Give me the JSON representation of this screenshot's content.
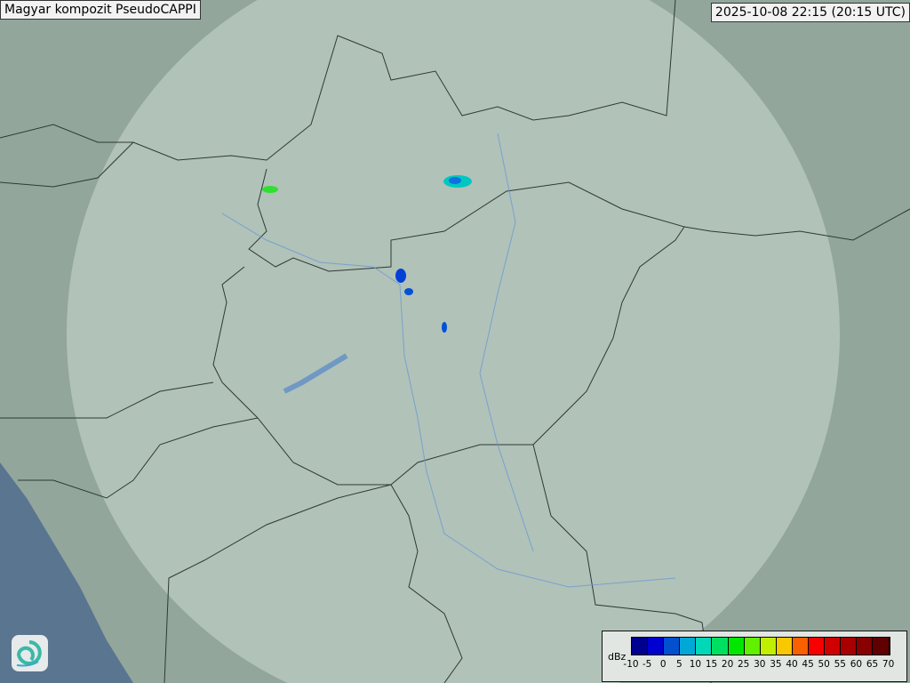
{
  "header": {
    "title": "Magyar kompozit  PseudoCAPPI",
    "timestamp": "2025-10-08 22:15 (20:15 UTC)"
  },
  "legend": {
    "unit": "dBz",
    "ticks": [
      "-10",
      "-5",
      "0",
      "5",
      "10",
      "15",
      "20",
      "25",
      "30",
      "35",
      "40",
      "45",
      "50",
      "55",
      "60",
      "65",
      "70"
    ],
    "colors": [
      "#000090",
      "#0000d0",
      "#0050d0",
      "#00a8d8",
      "#00d8b8",
      "#00e060",
      "#00e800",
      "#60f000",
      "#c0f000",
      "#f8c800",
      "#f86000",
      "#f80000",
      "#d00000",
      "#a80000",
      "#880000",
      "#600000"
    ]
  },
  "logo": {
    "icon": "swirl-logo-icon"
  },
  "colors": {
    "land": "#93a69c",
    "coverage": "#c8d6cf",
    "sea": "#5a7590",
    "border": "#333333",
    "river": "#6a9ad0"
  }
}
